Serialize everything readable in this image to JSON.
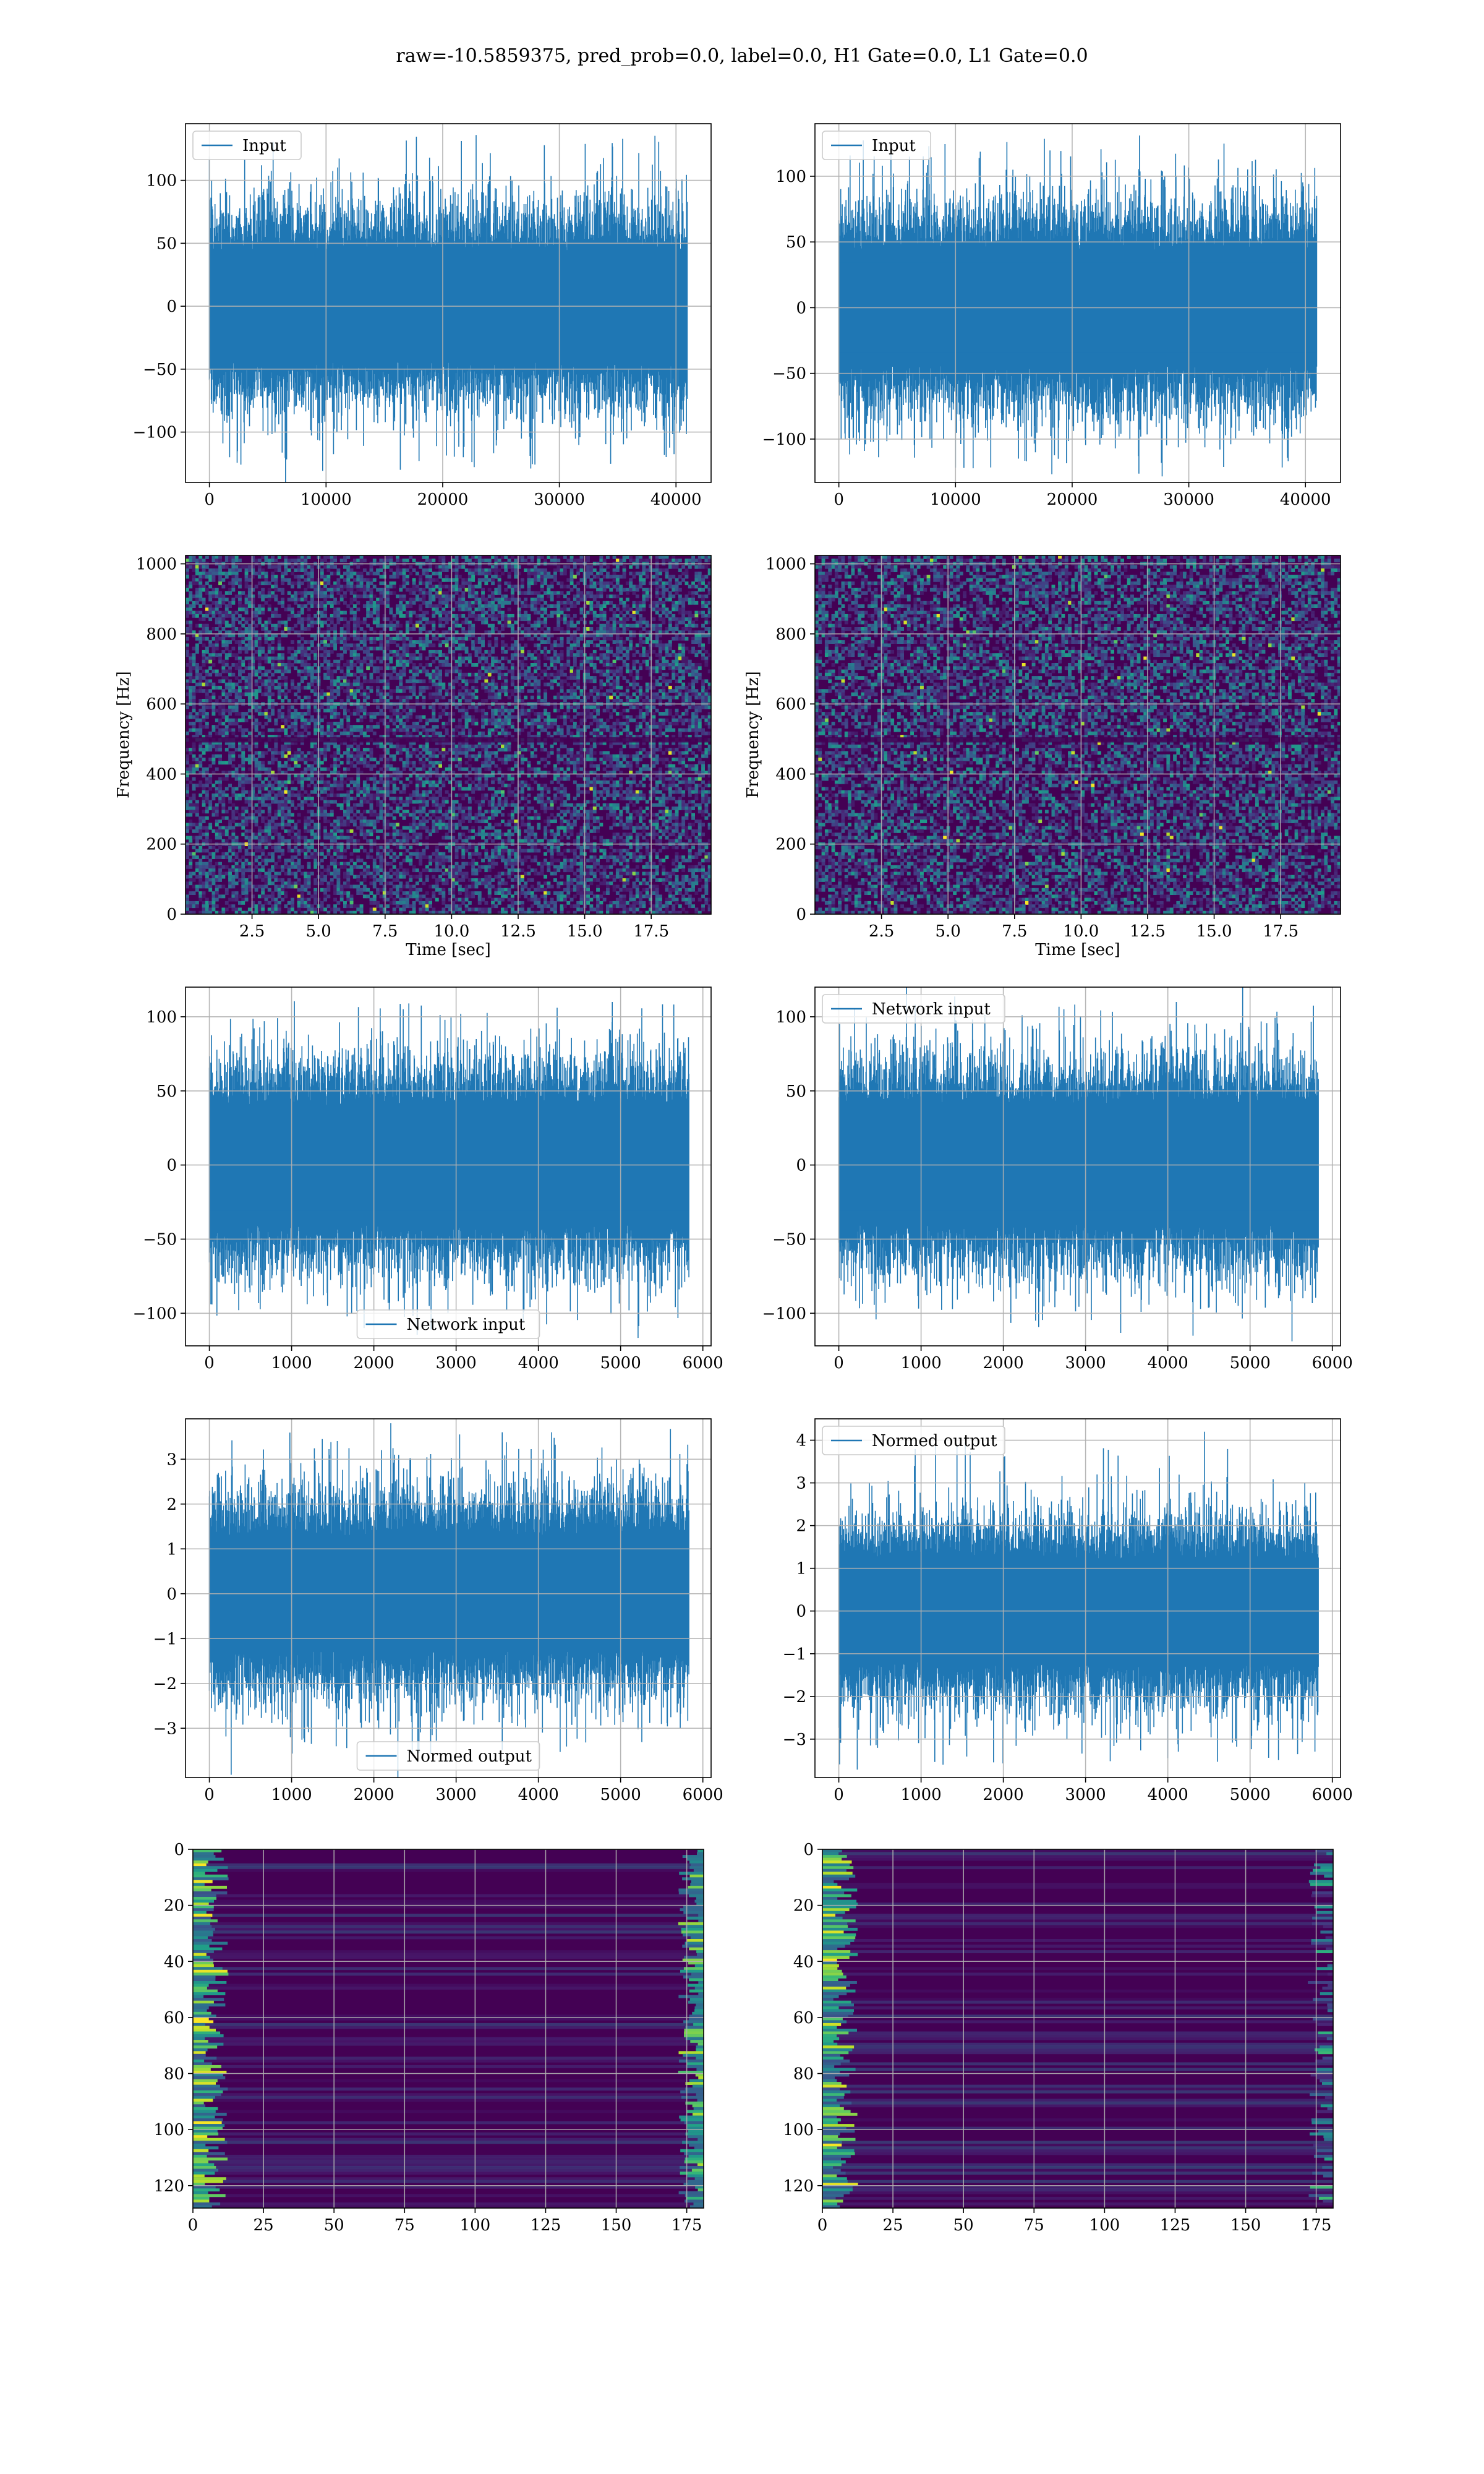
{
  "suptitle": "raw=-10.5859375, pred_prob=0.0, label=0.0, H1 Gate=0.0, L1 Gate=0.0",
  "colors": {
    "line": "#1f77b4",
    "grid": "#b0b0b0",
    "viridis_low": "#440154",
    "viridis_high": "#fde725"
  },
  "chart_data": [
    {
      "id": "input-h1",
      "type": "line",
      "legend": "Input",
      "legend_loc": "upper-left",
      "xlim": [
        -2048,
        43008
      ],
      "ylim": [
        -140,
        145
      ],
      "xticks": [
        0,
        10000,
        20000,
        30000,
        40000
      ],
      "yticks": [
        -100,
        -50,
        0,
        50,
        100
      ],
      "series": [
        {
          "n": 40960,
          "amplitude": 55,
          "max": 136,
          "min": -130
        }
      ]
    },
    {
      "id": "input-l1",
      "type": "line",
      "legend": "Input",
      "legend_loc": "upper-left",
      "xlim": [
        -2048,
        43008
      ],
      "ylim": [
        -133,
        140
      ],
      "xticks": [
        0,
        10000,
        20000,
        30000,
        40000
      ],
      "yticks": [
        -100,
        -50,
        0,
        50,
        100
      ],
      "series": [
        {
          "n": 40960,
          "amplitude": 55,
          "max": 131,
          "min": -122
        }
      ]
    },
    {
      "id": "spectrogram-h1",
      "type": "heatmap",
      "colormap": "viridis",
      "xlabel": "Time [sec]",
      "ylabel": "Frequency [Hz]",
      "xlim": [
        0.0,
        19.75
      ],
      "ylim": [
        0,
        1024
      ],
      "xticks": [
        2.5,
        5.0,
        7.5,
        10.0,
        12.5,
        15.0,
        17.5
      ],
      "yticks": [
        0,
        200,
        400,
        600,
        800,
        1000
      ]
    },
    {
      "id": "spectrogram-l1",
      "type": "heatmap",
      "colormap": "viridis",
      "xlabel": "Time [sec]",
      "ylabel": "Frequency [Hz]",
      "xlim": [
        0.0,
        19.75
      ],
      "ylim": [
        0,
        1024
      ],
      "xticks": [
        2.5,
        5.0,
        7.5,
        10.0,
        12.5,
        15.0,
        17.5
      ],
      "yticks": [
        0,
        200,
        400,
        600,
        800,
        1000
      ]
    },
    {
      "id": "network-input-h1",
      "type": "line",
      "legend": "Network input",
      "legend_loc": "lower-center",
      "xlim": [
        -290,
        6100
      ],
      "ylim": [
        -122,
        120
      ],
      "xticks": [
        0,
        1000,
        2000,
        3000,
        4000,
        5000,
        6000
      ],
      "yticks": [
        -100,
        -50,
        0,
        50,
        100
      ],
      "series": [
        {
          "n": 5830,
          "amplitude": 50,
          "max": 110,
          "min": -110
        }
      ]
    },
    {
      "id": "network-input-l1",
      "type": "line",
      "legend": "Network input",
      "legend_loc": "upper-left",
      "xlim": [
        -290,
        6100
      ],
      "ylim": [
        -122,
        120
      ],
      "xticks": [
        0,
        1000,
        2000,
        3000,
        4000,
        5000,
        6000
      ],
      "yticks": [
        -100,
        -50,
        0,
        50,
        100
      ],
      "series": [
        {
          "n": 5830,
          "amplitude": 50,
          "max": 110,
          "min": -105
        }
      ]
    },
    {
      "id": "normed-output-h1",
      "type": "line",
      "legend": "Normed output",
      "legend_loc": "lower-center",
      "xlim": [
        -290,
        6100
      ],
      "ylim": [
        -4.1,
        3.9
      ],
      "xticks": [
        0,
        1000,
        2000,
        3000,
        4000,
        5000,
        6000
      ],
      "yticks": [
        -3,
        -2,
        -1,
        0,
        1,
        2,
        3
      ],
      "series": [
        {
          "n": 5830,
          "amplitude": 1.6,
          "max": 3.6,
          "min": -3.6
        }
      ]
    },
    {
      "id": "normed-output-l1",
      "type": "line",
      "legend": "Normed output",
      "legend_loc": "upper-left",
      "xlim": [
        -290,
        6100
      ],
      "ylim": [
        -3.9,
        4.5
      ],
      "xticks": [
        0,
        1000,
        2000,
        3000,
        4000,
        5000,
        6000
      ],
      "yticks": [
        -3,
        -2,
        -1,
        0,
        1,
        2,
        3,
        4
      ],
      "series": [
        {
          "n": 5830,
          "amplitude": 1.5,
          "max": 4.2,
          "min": -3.6
        }
      ]
    },
    {
      "id": "activations-h1",
      "type": "heatmap",
      "colormap": "viridis",
      "xlim": [
        0,
        181
      ],
      "ylim": [
        128,
        0
      ],
      "xticks": [
        0,
        25,
        50,
        75,
        100,
        125,
        150,
        175
      ],
      "yticks": [
        0,
        20,
        40,
        60,
        80,
        100,
        120
      ]
    },
    {
      "id": "activations-l1",
      "type": "heatmap",
      "colormap": "viridis",
      "xlim": [
        0,
        181
      ],
      "ylim": [
        128,
        0
      ],
      "xticks": [
        0,
        25,
        50,
        75,
        100,
        125,
        150,
        175
      ],
      "yticks": [
        0,
        20,
        40,
        60,
        80,
        100,
        120
      ]
    }
  ]
}
